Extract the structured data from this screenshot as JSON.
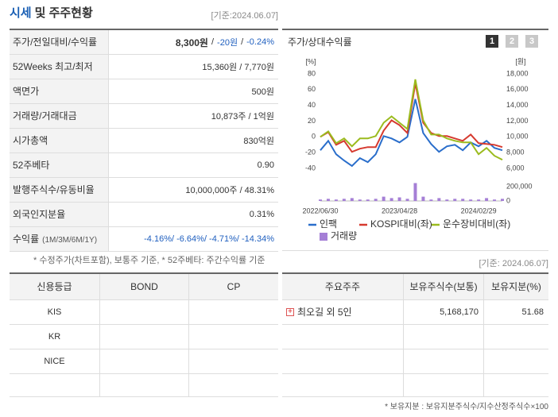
{
  "header": {
    "title": [
      "시세",
      "및 주주현황"
    ],
    "date": "[기준:2024.06.07]"
  },
  "price_table": {
    "rows": [
      {
        "label": "주가/전일대비/수익률",
        "value": [
          {
            "text": "8,300원",
            "bold": true
          },
          "/",
          {
            "text": "-20원",
            "color": "#1f5fbf"
          },
          "/",
          {
            "text": "-0.24%",
            "color": "#1f5fbf"
          }
        ]
      },
      {
        "label": "52Weeks 최고/최저",
        "value": [
          "15,360원 / 7,770원"
        ]
      },
      {
        "label": "액면가",
        "value": [
          "500원"
        ]
      },
      {
        "label": "거래량/거래대금",
        "value": [
          "10,873주 / 1억원"
        ]
      },
      {
        "label": "시가총액",
        "value": [
          "830억원"
        ]
      },
      {
        "label": "52주베타",
        "value": [
          "0.90"
        ]
      },
      {
        "label": "발행주식수/유동비율",
        "value": [
          "10,000,000주 / 48.31%"
        ]
      },
      {
        "label": "외국인지분율",
        "value": [
          "0.31%"
        ]
      },
      {
        "label": "수익률",
        "sub": "(1M/3M/6M/1Y)",
        "value": [
          {
            "text": "-4.16%/ -6.64%/ -4.71%/ -14.34%",
            "color": "#1f5fbf"
          }
        ]
      }
    ],
    "note": "* 수정주가(차트포함), 보통주 기준, * 52주베타: 주간수익률 기준"
  },
  "chart_panel": {
    "title": "주가/상대수익률",
    "tabs": [
      "1",
      "2",
      "3"
    ]
  },
  "chart_data": {
    "type": "line",
    "y_unit": "[%]",
    "y2_unit": "[원]",
    "categories": [
      "2022/06/30",
      null,
      null,
      null,
      null,
      null,
      null,
      null,
      null,
      null,
      "2023/04/28",
      null,
      null,
      null,
      null,
      null,
      null,
      null,
      null,
      null,
      "2024/02/29",
      null,
      null,
      null
    ],
    "ylim": [
      -40,
      80
    ],
    "yticks": [
      80,
      60,
      40,
      20,
      0,
      -20,
      -40
    ],
    "y2lim": [
      6000,
      18000
    ],
    "y2ticks": [
      {
        "value": 18000,
        "label": "18,000"
      },
      {
        "value": 16000,
        "label": "16,000"
      },
      {
        "value": 14000,
        "label": "14,000"
      },
      {
        "value": 12000,
        "label": "12,000"
      },
      {
        "value": 10000,
        "label": "10,000"
      },
      {
        "value": 8000,
        "label": "8,000"
      },
      {
        "value": 6000,
        "label": "6,000"
      }
    ],
    "volume_ylim": [
      0,
      200000
    ],
    "volume_yticks": [
      {
        "value": 200000,
        "label": "200,000"
      },
      0
    ],
    "series": [
      {
        "name": "인팩",
        "color": "#2a6ecb",
        "axis": "y2",
        "values": [
          8300,
          9500,
          7800,
          7000,
          6300,
          7300,
          6800,
          7800,
          10100,
          9800,
          9300,
          10000,
          14800,
          10500,
          9100,
          8100,
          8800,
          9000,
          8300,
          9300,
          8800,
          9500,
          8600,
          8300
        ]
      },
      {
        "name": "KOSPI대비(좌)",
        "color": "#d63a2f",
        "values": [
          0,
          6,
          -10,
          -5,
          -19,
          -15,
          -13,
          -13,
          8,
          21,
          15,
          5,
          68,
          18,
          5,
          1,
          1,
          -2,
          -5,
          3,
          -8,
          -9,
          -10,
          -13
        ]
      },
      {
        "name": "운수장비대비(좌)",
        "color": "#9bbb1e",
        "values": [
          0,
          7,
          -8,
          -2,
          -12,
          -2,
          -2,
          1,
          18,
          26,
          18,
          10,
          73,
          21,
          3,
          3,
          -2,
          -5,
          -7,
          -7,
          -22,
          -14,
          -24,
          -29
        ]
      },
      {
        "name": "거래량",
        "color": "#a57fd6",
        "axis": "volume",
        "type": "bar",
        "values": [
          20000,
          30000,
          20000,
          30000,
          40000,
          20000,
          20000,
          30000,
          60000,
          40000,
          50000,
          30000,
          250000,
          60000,
          20000,
          40000,
          20000,
          30000,
          30000,
          20000,
          20000,
          40000,
          20000,
          30000
        ]
      }
    ]
  },
  "lower_date": "[기준: 2024.06.07]",
  "credit_table": {
    "headers": [
      "신용등급",
      "BOND",
      "CP"
    ],
    "rows": [
      "KIS",
      "KR",
      "NICE"
    ]
  },
  "holder_table": {
    "headers": [
      "주요주주",
      "보유주식수(보통)",
      "보유지분(%)"
    ],
    "rows": [
      [
        "최오길 외 5인",
        "5,168,170",
        "51.68"
      ]
    ],
    "note": "* 보유지분 : 보유지분주식수/지수산정주식수×100"
  }
}
